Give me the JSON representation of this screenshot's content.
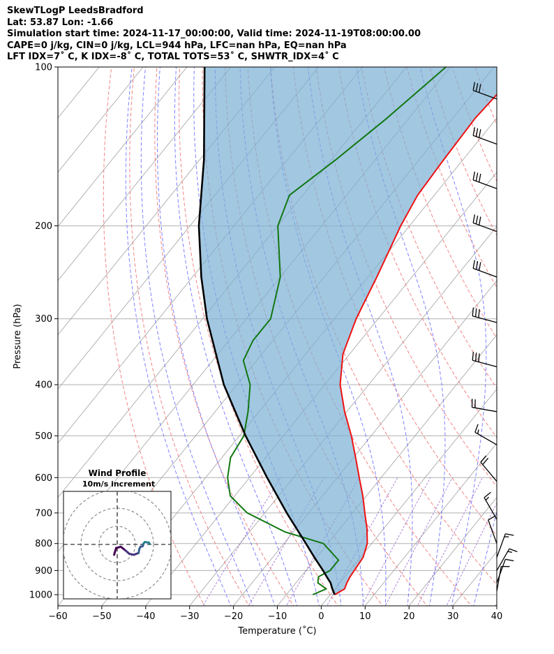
{
  "header": {
    "line1": "SkewTLogP LeedsBradford",
    "line2": "Lat: 53.87   Lon: -1.66",
    "line3": "Simulation start time: 2024-11-17_00:00:00, Valid time: 2024-11-19T08:00:00.00",
    "line4": "CAPE=0 j/kg, CIN=0 j/kg, LCL=944 hPa, LFC=nan hPa, EQ=nan hPa",
    "line5": "LFT IDX=7˚ C, K IDX=-8˚ C, TOTAL TOTS=53˚ C, SHWTR_IDX=4˚ C"
  },
  "chart_data": [
    {
      "type": "line",
      "subtype": "skew-t log-p",
      "xlabel": "Temperature (˚C)",
      "ylabel": "Pressure (hPa)",
      "xlim": [
        -60,
        40
      ],
      "ylim": [
        1050,
        100
      ],
      "y_scale": "log",
      "grid": true,
      "x_ticks": [
        "−60",
        "−50",
        "−40",
        "−30",
        "−20",
        "−10",
        "0",
        "10",
        "20",
        "30",
        "40"
      ],
      "y_ticks": [
        "100",
        "200",
        "300",
        "400",
        "500",
        "600",
        "700",
        "800",
        "900",
        "1000"
      ],
      "reference_lines": {
        "isotherms_color": "#a0a0a0",
        "dry_adiabats_color": "#f07070",
        "moist_adiabats_color": "#6a6aff",
        "mixing_ratio_color": "#9966cc"
      },
      "series": [
        {
          "color": "#ee1111",
          "points": [
            {
              "p": 1000,
              "t": 1.0
            },
            {
              "p": 975,
              "t": 2.2
            },
            {
              "p": 950,
              "t": 1.6
            },
            {
              "p": 925,
              "t": 1.2
            },
            {
              "p": 900,
              "t": 1.0
            },
            {
              "p": 850,
              "t": 0.6
            },
            {
              "p": 800,
              "t": -1.0
            },
            {
              "p": 750,
              "t": -3.8
            },
            {
              "p": 700,
              "t": -7.2
            },
            {
              "p": 650,
              "t": -10.8
            },
            {
              "p": 600,
              "t": -15.0
            },
            {
              "p": 550,
              "t": -19.5
            },
            {
              "p": 500,
              "t": -24.5
            },
            {
              "p": 450,
              "t": -30.5
            },
            {
              "p": 400,
              "t": -36.5
            },
            {
              "p": 350,
              "t": -41.5
            },
            {
              "p": 300,
              "t": -45.0
            },
            {
              "p": 250,
              "t": -48.0
            },
            {
              "p": 200,
              "t": -52.0
            },
            {
              "p": 175,
              "t": -53.8
            },
            {
              "p": 150,
              "t": -54.4
            },
            {
              "p": 125,
              "t": -54.9
            },
            {
              "p": 110,
              "t": -54.2
            },
            {
              "p": 100,
              "t": -55.2
            }
          ]
        },
        {
          "color": "#117711",
          "points": [
            {
              "p": 1000,
              "t": -4.0
            },
            {
              "p": 975,
              "t": -2.0
            },
            {
              "p": 950,
              "t": -5.0
            },
            {
              "p": 925,
              "t": -6.0
            },
            {
              "p": 900,
              "t": -4.5
            },
            {
              "p": 860,
              "t": -4.5
            },
            {
              "p": 800,
              "t": -11.0
            },
            {
              "p": 760,
              "t": -22.0
            },
            {
              "p": 700,
              "t": -34.0
            },
            {
              "p": 650,
              "t": -41.0
            },
            {
              "p": 600,
              "t": -45.0
            },
            {
              "p": 550,
              "t": -48.0
            },
            {
              "p": 500,
              "t": -49.0
            },
            {
              "p": 450,
              "t": -52.5
            },
            {
              "p": 400,
              "t": -57.0
            },
            {
              "p": 360,
              "t": -63.0
            },
            {
              "p": 330,
              "t": -64.5
            },
            {
              "p": 300,
              "t": -64.5
            },
            {
              "p": 250,
              "t": -70.0
            },
            {
              "p": 200,
              "t": -80.0
            },
            {
              "p": 175,
              "t": -83.0
            },
            {
              "p": 150,
              "t": -79.0
            },
            {
              "p": 125,
              "t": -75.0
            },
            {
              "p": 100,
              "t": -71.0
            }
          ]
        },
        {
          "color": "#000000",
          "points": [
            {
              "p": 1000,
              "t": 1.0
            },
            {
              "p": 975,
              "t": -0.6
            },
            {
              "p": 950,
              "t": -2.1
            },
            {
              "p": 925,
              "t": -4.1
            },
            {
              "p": 900,
              "t": -6.1
            },
            {
              "p": 850,
              "t": -10.5
            },
            {
              "p": 800,
              "t": -15.0
            },
            {
              "p": 700,
              "t": -25.0
            },
            {
              "p": 600,
              "t": -36.0
            },
            {
              "p": 500,
              "t": -48.6
            },
            {
              "p": 400,
              "t": -63.0
            },
            {
              "p": 300,
              "t": -79.0
            },
            {
              "p": 250,
              "t": -88.0
            },
            {
              "p": 200,
              "t": -98.0
            },
            {
              "p": 150,
              "t": -109.0
            },
            {
              "p": 100,
              "t": -126.0
            }
          ]
        }
      ],
      "wind_barbs": {
        "color": "#000000",
        "levels": [
          {
            "p": 115,
            "speed_kt": 30,
            "dir_deg": 290
          },
          {
            "p": 140,
            "speed_kt": 30,
            "dir_deg": 290
          },
          {
            "p": 170,
            "speed_kt": 30,
            "dir_deg": 290
          },
          {
            "p": 205,
            "speed_kt": 30,
            "dir_deg": 290
          },
          {
            "p": 250,
            "speed_kt": 30,
            "dir_deg": 290
          },
          {
            "p": 305,
            "speed_kt": 30,
            "dir_deg": 285
          },
          {
            "p": 370,
            "speed_kt": 30,
            "dir_deg": 285
          },
          {
            "p": 450,
            "speed_kt": 20,
            "dir_deg": 280
          },
          {
            "p": 520,
            "speed_kt": 15,
            "dir_deg": 300
          },
          {
            "p": 610,
            "speed_kt": 20,
            "dir_deg": 320
          },
          {
            "p": 720,
            "speed_kt": 15,
            "dir_deg": 330
          },
          {
            "p": 800,
            "speed_kt": 10,
            "dir_deg": 340
          },
          {
            "p": 850,
            "speed_kt": 15,
            "dir_deg": 20
          },
          {
            "p": 900,
            "speed_kt": 15,
            "dir_deg": 30
          },
          {
            "p": 950,
            "speed_kt": 10,
            "dir_deg": 20
          },
          {
            "p": 985,
            "speed_kt": 10,
            "dir_deg": 10
          }
        ]
      }
    },
    {
      "type": "hodograph",
      "title": "Wind Profile",
      "subtitle": "10m/s increment",
      "ring_increment": 10,
      "rings": 3,
      "colormap": "viridis",
      "points": [
        {
          "u": -1.7,
          "v": -5.7
        },
        {
          "u": -1.3,
          "v": -4.3
        },
        {
          "u": -0.6,
          "v": -2.0
        },
        {
          "u": 2.0,
          "v": -1.3
        },
        {
          "u": 4.4,
          "v": -3.2
        },
        {
          "u": 6.7,
          "v": -5.2
        },
        {
          "u": 9.2,
          "v": -5.7
        },
        {
          "u": 11.8,
          "v": -4.7
        },
        {
          "u": 12.2,
          "v": -2.5
        },
        {
          "u": 12.8,
          "v": -1.3
        },
        {
          "u": 14.0,
          "v": -1.0
        },
        {
          "u": 14.5,
          "v": 0.5
        },
        {
          "u": 15.2,
          "v": 1.3
        },
        {
          "u": 17.4,
          "v": 1.0
        },
        {
          "u": 17.9,
          "v": 0.3
        }
      ]
    }
  ]
}
